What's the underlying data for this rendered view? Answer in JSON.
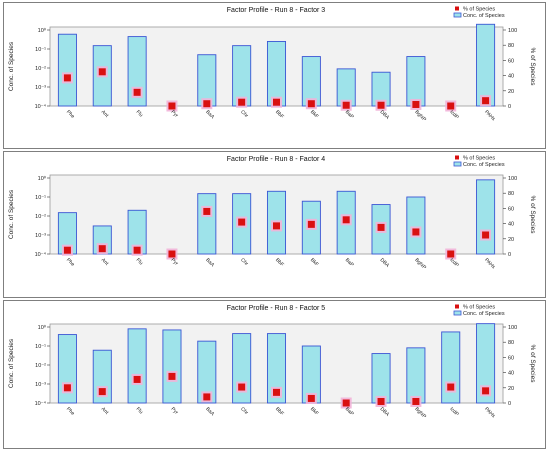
{
  "legend": {
    "pct_label": "% of Species",
    "conc_label": "Conc. of Species"
  },
  "colors": {
    "bar_fill": "#9ee3ea",
    "bar_stroke": "#3a55d4",
    "marker": "#d91010",
    "marker_halo": "#f2b2d8",
    "plot_background": "#f2f2f2"
  },
  "chart_data": [
    {
      "type": "bar",
      "title": "Factor Profile - Run 8 - Factor 3",
      "ylabel": "Conc. of Species",
      "y2label": "% of Species",
      "y_scale": "log",
      "ylim": [
        0.0001,
        1
      ],
      "y_ticks": [
        "10⁻⁴",
        "10⁻³",
        "10⁻²",
        "10⁻¹",
        "10⁰"
      ],
      "y2lim": [
        0,
        100
      ],
      "y2_ticks": [
        "0",
        "20",
        "40",
        "60",
        "80",
        "100"
      ],
      "categories": [
        "Phe",
        "Ant",
        "Flu",
        "Pyr",
        "BaA",
        "Chr",
        "BbF",
        "BkF",
        "BaP",
        "DBA",
        "BghiP",
        "IcdP",
        "PAHs"
      ],
      "series": [
        {
          "name": "Conc. of Species",
          "type": "bar",
          "values": [
            0.6,
            0.15,
            0.45,
            0,
            0.05,
            0.15,
            0.25,
            0.04,
            0.009,
            0.006,
            0.04,
            0,
            2
          ]
        },
        {
          "name": "% of Species",
          "type": "scatter",
          "values": [
            37,
            45,
            18,
            0,
            3,
            5,
            5,
            3,
            1,
            1,
            2,
            0,
            7
          ]
        }
      ],
      "legend_position": "top-right",
      "grid": false
    },
    {
      "type": "bar",
      "title": "Factor Profile - Run 8 - Factor 4",
      "ylabel": "Conc. of Species",
      "y2label": "% of Species",
      "y_scale": "log",
      "ylim": [
        0.0001,
        1
      ],
      "y_ticks": [
        "10⁻⁴",
        "10⁻³",
        "10⁻²",
        "10⁻¹",
        "10⁰"
      ],
      "y2lim": [
        0,
        100
      ],
      "y2_ticks": [
        "0",
        "20",
        "40",
        "60",
        "80",
        "100"
      ],
      "categories": [
        "Phe",
        "Ant",
        "Flu",
        "Pyr",
        "BaA",
        "Chr",
        "BbF",
        "BkF",
        "BaP",
        "DBA",
        "BghiP",
        "IcdP",
        "PAHs"
      ],
      "series": [
        {
          "name": "Conc. of Species",
          "type": "bar",
          "values": [
            0.015,
            0.003,
            0.02,
            0,
            0.15,
            0.15,
            0.2,
            0.06,
            0.2,
            0.04,
            0.1,
            0,
            0.8
          ]
        },
        {
          "name": "% of Species",
          "type": "scatter",
          "values": [
            5,
            7,
            5,
            0,
            56,
            42,
            37,
            39,
            45,
            35,
            29,
            0,
            25
          ]
        }
      ],
      "legend_position": "top-right",
      "grid": false
    },
    {
      "type": "bar",
      "title": "Factor Profile - Run 8 - Factor 5",
      "ylabel": "Conc. of Species",
      "y2label": "% of Species",
      "y_scale": "log",
      "ylim": [
        0.0001,
        1
      ],
      "y_ticks": [
        "10⁻⁴",
        "10⁻³",
        "10⁻²",
        "10⁻¹",
        "10⁰"
      ],
      "y2lim": [
        0,
        100
      ],
      "y2_ticks": [
        "0",
        "20",
        "40",
        "60",
        "80",
        "100"
      ],
      "categories": [
        "Phe",
        "Ant",
        "Flu",
        "Pyr",
        "BaA",
        "Chr",
        "BbF",
        "BkF",
        "BaP",
        "DBA",
        "BghiP",
        "IcdP",
        "PAHs"
      ],
      "series": [
        {
          "name": "Conc. of Species",
          "type": "bar",
          "values": [
            0.4,
            0.06,
            0.8,
            0.7,
            0.18,
            0.45,
            0.45,
            0.1,
            0,
            0.04,
            0.08,
            0.55,
            1.5
          ]
        },
        {
          "name": "% of Species",
          "type": "scatter",
          "values": [
            20,
            15,
            31,
            35,
            8,
            21,
            14,
            6,
            0,
            2,
            2,
            21,
            16
          ]
        }
      ],
      "legend_position": "top-right",
      "grid": false
    }
  ]
}
